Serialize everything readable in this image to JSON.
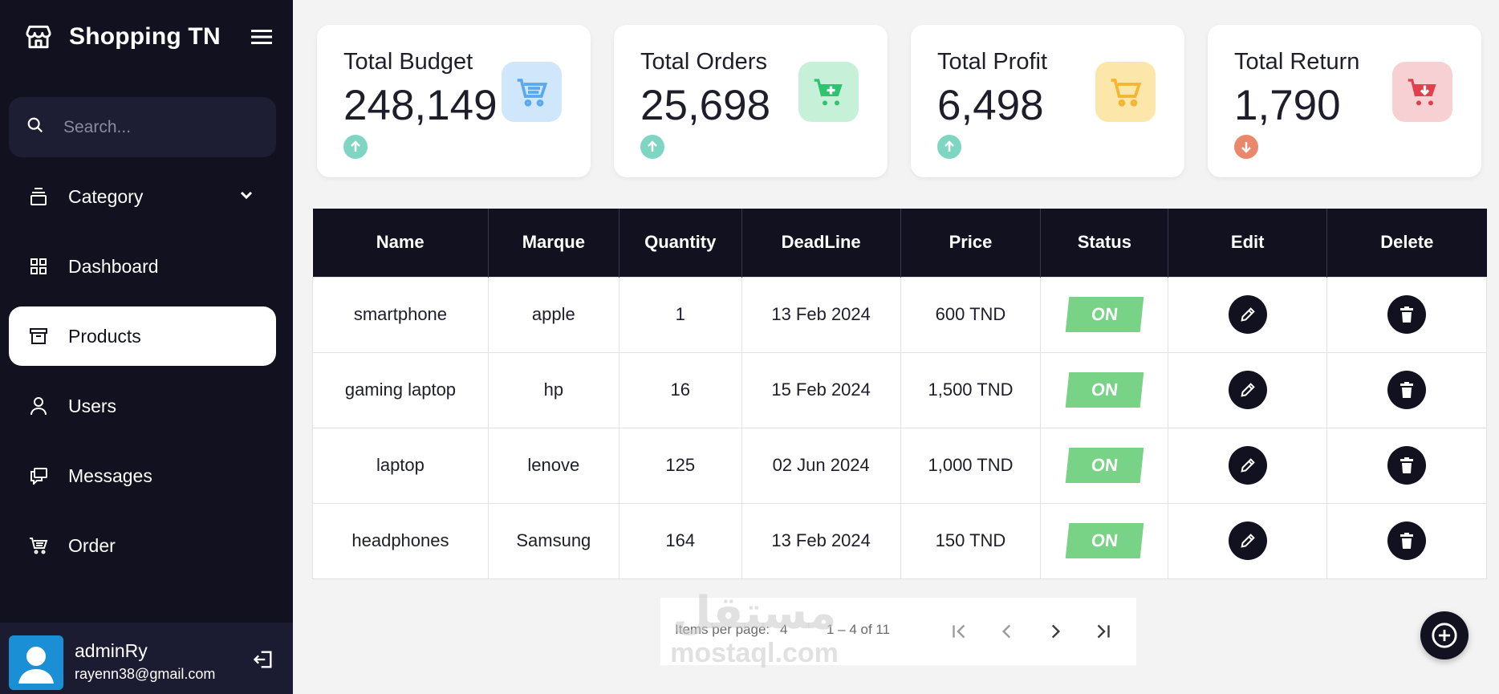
{
  "brand": {
    "title": "Shopping TN"
  },
  "search": {
    "placeholder": "Search..."
  },
  "nav": {
    "items": [
      {
        "label": "Category",
        "icon": "layers-icon",
        "has_dropdown": true
      },
      {
        "label": "Dashboard",
        "icon": "grid-icon"
      },
      {
        "label": "Products",
        "icon": "archive-icon",
        "active": true
      },
      {
        "label": "Users",
        "icon": "user-icon"
      },
      {
        "label": "Messages",
        "icon": "chat-icon"
      },
      {
        "label": "Order",
        "icon": "cart-icon"
      }
    ]
  },
  "user": {
    "name": "adminRy",
    "email": "rayenn38@gmail.com"
  },
  "stats": [
    {
      "title": "Total Budget",
      "value": "248,149",
      "trend": "up",
      "icon_color": "#cfe6fb",
      "icon_fg": "#5aa8ee"
    },
    {
      "title": "Total Orders",
      "value": "25,698",
      "trend": "up",
      "icon_color": "#c6f1d8",
      "icon_fg": "#2ec46f"
    },
    {
      "title": "Total Profit",
      "value": "6,498",
      "trend": "up",
      "icon_color": "#fde6a9",
      "icon_fg": "#f5b52e"
    },
    {
      "title": "Total Return",
      "value": "1,790",
      "trend": "down",
      "icon_color": "#f7d0d3",
      "icon_fg": "#e0414d"
    }
  ],
  "table": {
    "headers": [
      "Name",
      "Marque",
      "Quantity",
      "DeadLine",
      "Price",
      "Status",
      "Edit",
      "Delete"
    ],
    "rows": [
      {
        "name": "smartphone",
        "marque": "apple",
        "quantity": "1",
        "deadline": "13 Feb 2024",
        "price": "600 TND",
        "status": "ON"
      },
      {
        "name": "gaming laptop",
        "marque": "hp",
        "quantity": "16",
        "deadline": "15 Feb 2024",
        "price": "1,500 TND",
        "status": "ON"
      },
      {
        "name": "laptop",
        "marque": "lenove",
        "quantity": "125",
        "deadline": "02 Jun 2024",
        "price": "1,000 TND",
        "status": "ON"
      },
      {
        "name": "headphones",
        "marque": "Samsung",
        "quantity": "164",
        "deadline": "13 Feb 2024",
        "price": "150 TND",
        "status": "ON"
      }
    ]
  },
  "pagination": {
    "items_per_page_label": "Items per page:",
    "items_per_page": "4",
    "range": "1 – 4 of 11"
  },
  "watermark": {
    "arabic": "مستقل",
    "latin": "mostaql.com"
  },
  "colors": {
    "sidebar": "#11111f",
    "accent_on": "#79d386",
    "trend_up": "#7ed6c2",
    "trend_down": "#e9886a"
  }
}
